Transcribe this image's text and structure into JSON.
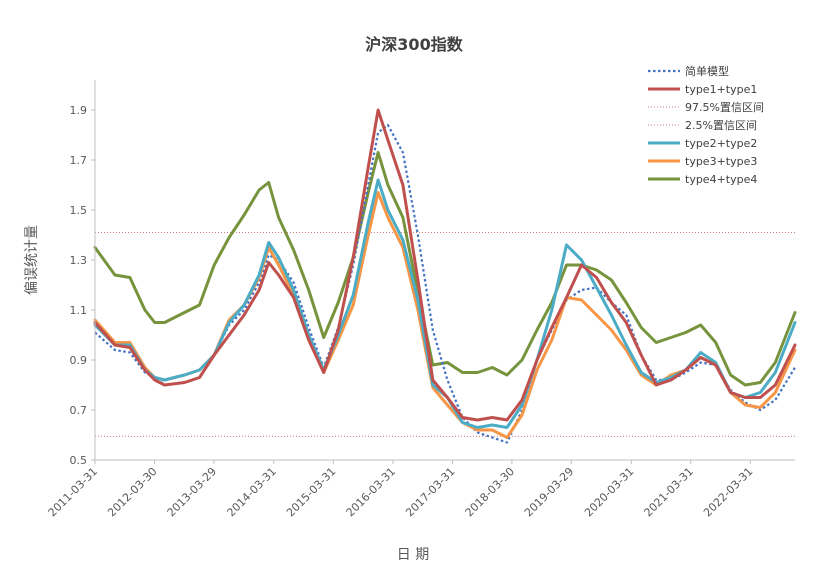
{
  "chart_data": {
    "type": "line",
    "title": "沪深300指数",
    "xlabel": "日 期",
    "ylabel": "偏误统计量",
    "ylim": [
      0.5,
      2.0
    ],
    "yticks": [
      "0.5",
      "0.7",
      "0.9",
      "1.1",
      "1.3",
      "1.5",
      "1.7",
      "1.9"
    ],
    "x_tick_labels": [
      "2011-03-31",
      "2012-03-30",
      "2013-03-29",
      "2014-03-31",
      "2015-03-31",
      "2016-03-31",
      "2017-03-31",
      "2018-03-30",
      "2019-03-29",
      "2020-03-31",
      "2021-03-31",
      "2022-03-31"
    ],
    "x_range": [
      "2011-03-31",
      "2022-12-30"
    ],
    "grid": false,
    "legend_position": "top-right",
    "reference_lines": [
      {
        "name": "97.5%置信区间",
        "value": 1.41,
        "color": "#C0504D",
        "style": "dotted"
      },
      {
        "name": "2.5%置信区间",
        "value": 0.595,
        "color": "#C0504D",
        "style": "dotted"
      }
    ],
    "series": [
      {
        "name": "简单模型",
        "color": "#4472C4",
        "style": "dotted",
        "points": [
          [
            "2011-03-31",
            1.01
          ],
          [
            "2011-07-31",
            0.94
          ],
          [
            "2011-10-31",
            0.93
          ],
          [
            "2012-01-31",
            0.85
          ],
          [
            "2012-03-31",
            0.83
          ],
          [
            "2012-05-31",
            0.8
          ],
          [
            "2012-09-30",
            0.81
          ],
          [
            "2012-12-31",
            0.83
          ],
          [
            "2013-03-31",
            0.92
          ],
          [
            "2013-06-30",
            1.04
          ],
          [
            "2013-09-30",
            1.1
          ],
          [
            "2013-12-31",
            1.21
          ],
          [
            "2014-02-28",
            1.32
          ],
          [
            "2014-04-30",
            1.3
          ],
          [
            "2014-07-31",
            1.21
          ],
          [
            "2014-10-31",
            1.03
          ],
          [
            "2015-01-31",
            0.87
          ],
          [
            "2015-04-30",
            1.03
          ],
          [
            "2015-07-31",
            1.28
          ],
          [
            "2015-10-31",
            1.6
          ],
          [
            "2015-12-31",
            1.81
          ],
          [
            "2016-02-29",
            1.84
          ],
          [
            "2016-05-31",
            1.73
          ],
          [
            "2016-08-31",
            1.4
          ],
          [
            "2016-11-30",
            1.02
          ],
          [
            "2017-02-28",
            0.82
          ],
          [
            "2017-05-31",
            0.67
          ],
          [
            "2017-08-31",
            0.61
          ],
          [
            "2017-11-30",
            0.59
          ],
          [
            "2018-02-28",
            0.57
          ],
          [
            "2018-05-31",
            0.7
          ],
          [
            "2018-08-31",
            0.9
          ],
          [
            "2018-11-30",
            1.02
          ],
          [
            "2019-02-28",
            1.14
          ],
          [
            "2019-05-31",
            1.18
          ],
          [
            "2019-08-31",
            1.19
          ],
          [
            "2019-11-30",
            1.13
          ],
          [
            "2020-02-29",
            1.08
          ],
          [
            "2020-05-31",
            0.92
          ],
          [
            "2020-08-31",
            0.82
          ],
          [
            "2020-11-30",
            0.82
          ],
          [
            "2021-02-28",
            0.85
          ],
          [
            "2021-05-31",
            0.89
          ],
          [
            "2021-08-31",
            0.88
          ],
          [
            "2021-11-30",
            0.78
          ],
          [
            "2022-02-28",
            0.73
          ],
          [
            "2022-05-31",
            0.7
          ],
          [
            "2022-08-31",
            0.74
          ],
          [
            "2022-12-30",
            0.87
          ]
        ]
      },
      {
        "name": "type1+type1",
        "color": "#C0504D",
        "style": "solid",
        "points": [
          [
            "2011-03-31",
            1.05
          ],
          [
            "2011-07-31",
            0.96
          ],
          [
            "2011-10-31",
            0.95
          ],
          [
            "2012-01-31",
            0.86
          ],
          [
            "2012-03-31",
            0.82
          ],
          [
            "2012-05-31",
            0.8
          ],
          [
            "2012-09-30",
            0.81
          ],
          [
            "2012-12-31",
            0.83
          ],
          [
            "2013-03-31",
            0.92
          ],
          [
            "2013-06-30",
            1.0
          ],
          [
            "2013-09-30",
            1.08
          ],
          [
            "2013-12-31",
            1.18
          ],
          [
            "2014-02-28",
            1.29
          ],
          [
            "2014-04-30",
            1.24
          ],
          [
            "2014-07-31",
            1.15
          ],
          [
            "2014-10-31",
            0.98
          ],
          [
            "2015-01-31",
            0.85
          ],
          [
            "2015-04-30",
            1.02
          ],
          [
            "2015-07-31",
            1.31
          ],
          [
            "2015-10-31",
            1.67
          ],
          [
            "2015-12-31",
            1.9
          ],
          [
            "2016-02-29",
            1.78
          ],
          [
            "2016-05-31",
            1.6
          ],
          [
            "2016-08-31",
            1.22
          ],
          [
            "2016-11-30",
            0.82
          ],
          [
            "2017-02-28",
            0.75
          ],
          [
            "2017-05-31",
            0.67
          ],
          [
            "2017-08-31",
            0.66
          ],
          [
            "2017-11-30",
            0.67
          ],
          [
            "2018-02-28",
            0.66
          ],
          [
            "2018-05-31",
            0.74
          ],
          [
            "2018-08-31",
            0.9
          ],
          [
            "2018-11-30",
            1.03
          ],
          [
            "2019-02-28",
            1.15
          ],
          [
            "2019-05-31",
            1.28
          ],
          [
            "2019-08-31",
            1.23
          ],
          [
            "2019-11-30",
            1.13
          ],
          [
            "2020-02-29",
            1.05
          ],
          [
            "2020-05-31",
            0.92
          ],
          [
            "2020-08-31",
            0.8
          ],
          [
            "2020-11-30",
            0.82
          ],
          [
            "2021-02-28",
            0.86
          ],
          [
            "2021-05-31",
            0.91
          ],
          [
            "2021-08-31",
            0.88
          ],
          [
            "2021-11-30",
            0.77
          ],
          [
            "2022-02-28",
            0.75
          ],
          [
            "2022-05-31",
            0.75
          ],
          [
            "2022-08-31",
            0.8
          ],
          [
            "2022-12-30",
            0.96
          ]
        ]
      },
      {
        "name": "type2+type2",
        "color": "#4BACC6",
        "style": "solid",
        "points": [
          [
            "2011-03-31",
            1.04
          ],
          [
            "2011-07-31",
            0.96
          ],
          [
            "2011-10-31",
            0.96
          ],
          [
            "2012-01-31",
            0.86
          ],
          [
            "2012-03-31",
            0.83
          ],
          [
            "2012-05-31",
            0.82
          ],
          [
            "2012-09-30",
            0.84
          ],
          [
            "2012-12-31",
            0.86
          ],
          [
            "2013-03-31",
            0.92
          ],
          [
            "2013-06-30",
            1.05
          ],
          [
            "2013-09-30",
            1.12
          ],
          [
            "2013-12-31",
            1.24
          ],
          [
            "2014-02-28",
            1.37
          ],
          [
            "2014-04-30",
            1.31
          ],
          [
            "2014-07-31",
            1.18
          ],
          [
            "2014-10-31",
            1.0
          ],
          [
            "2015-01-31",
            0.86
          ],
          [
            "2015-04-30",
            1.0
          ],
          [
            "2015-07-31",
            1.16
          ],
          [
            "2015-10-31",
            1.45
          ],
          [
            "2015-12-31",
            1.62
          ],
          [
            "2016-02-29",
            1.5
          ],
          [
            "2016-05-31",
            1.38
          ],
          [
            "2016-08-31",
            1.14
          ],
          [
            "2016-11-30",
            0.8
          ],
          [
            "2017-02-28",
            0.75
          ],
          [
            "2017-05-31",
            0.65
          ],
          [
            "2017-08-31",
            0.63
          ],
          [
            "2017-11-30",
            0.64
          ],
          [
            "2018-02-28",
            0.63
          ],
          [
            "2018-05-31",
            0.72
          ],
          [
            "2018-08-31",
            0.9
          ],
          [
            "2018-11-30",
            1.1
          ],
          [
            "2019-02-28",
            1.36
          ],
          [
            "2019-05-31",
            1.3
          ],
          [
            "2019-08-31",
            1.19
          ],
          [
            "2019-11-30",
            1.08
          ],
          [
            "2020-02-29",
            0.96
          ],
          [
            "2020-05-31",
            0.85
          ],
          [
            "2020-08-31",
            0.81
          ],
          [
            "2020-11-30",
            0.83
          ],
          [
            "2021-02-28",
            0.86
          ],
          [
            "2021-05-31",
            0.93
          ],
          [
            "2021-08-31",
            0.89
          ],
          [
            "2021-11-30",
            0.77
          ],
          [
            "2022-02-28",
            0.75
          ],
          [
            "2022-05-31",
            0.77
          ],
          [
            "2022-08-31",
            0.85
          ],
          [
            "2022-12-30",
            1.05
          ]
        ]
      },
      {
        "name": "type3+type3",
        "color": "#F79646",
        "style": "solid",
        "points": [
          [
            "2011-03-31",
            1.06
          ],
          [
            "2011-07-31",
            0.97
          ],
          [
            "2011-10-31",
            0.97
          ],
          [
            "2012-01-31",
            0.87
          ],
          [
            "2012-03-31",
            0.83
          ],
          [
            "2012-05-31",
            0.82
          ],
          [
            "2012-09-30",
            0.84
          ],
          [
            "2012-12-31",
            0.86
          ],
          [
            "2013-03-31",
            0.92
          ],
          [
            "2013-06-30",
            1.06
          ],
          [
            "2013-09-30",
            1.12
          ],
          [
            "2013-12-31",
            1.23
          ],
          [
            "2014-02-28",
            1.35
          ],
          [
            "2014-04-30",
            1.28
          ],
          [
            "2014-07-31",
            1.16
          ],
          [
            "2014-10-31",
            0.99
          ],
          [
            "2015-01-31",
            0.85
          ],
          [
            "2015-04-30",
            0.98
          ],
          [
            "2015-07-31",
            1.12
          ],
          [
            "2015-10-31",
            1.4
          ],
          [
            "2015-12-31",
            1.57
          ],
          [
            "2016-02-29",
            1.47
          ],
          [
            "2016-05-31",
            1.35
          ],
          [
            "2016-08-31",
            1.1
          ],
          [
            "2016-11-30",
            0.79
          ],
          [
            "2017-02-28",
            0.72
          ],
          [
            "2017-05-31",
            0.65
          ],
          [
            "2017-08-31",
            0.62
          ],
          [
            "2017-11-30",
            0.62
          ],
          [
            "2018-02-28",
            0.59
          ],
          [
            "2018-05-31",
            0.68
          ],
          [
            "2018-08-31",
            0.86
          ],
          [
            "2018-11-30",
            0.98
          ],
          [
            "2019-02-28",
            1.15
          ],
          [
            "2019-05-31",
            1.14
          ],
          [
            "2019-08-31",
            1.08
          ],
          [
            "2019-11-30",
            1.02
          ],
          [
            "2020-02-29",
            0.94
          ],
          [
            "2020-05-31",
            0.84
          ],
          [
            "2020-08-31",
            0.8
          ],
          [
            "2020-11-30",
            0.84
          ],
          [
            "2021-02-28",
            0.86
          ],
          [
            "2021-05-31",
            0.91
          ],
          [
            "2021-08-31",
            0.88
          ],
          [
            "2021-11-30",
            0.77
          ],
          [
            "2022-02-28",
            0.72
          ],
          [
            "2022-05-31",
            0.71
          ],
          [
            "2022-08-31",
            0.77
          ],
          [
            "2022-12-30",
            0.94
          ]
        ]
      },
      {
        "name": "type4+type4",
        "color": "#77933C",
        "style": "solid",
        "points": [
          [
            "2011-03-31",
            1.35
          ],
          [
            "2011-07-31",
            1.24
          ],
          [
            "2011-10-31",
            1.23
          ],
          [
            "2012-01-31",
            1.1
          ],
          [
            "2012-03-31",
            1.05
          ],
          [
            "2012-05-31",
            1.05
          ],
          [
            "2012-09-30",
            1.09
          ],
          [
            "2012-12-31",
            1.12
          ],
          [
            "2013-03-31",
            1.28
          ],
          [
            "2013-06-30",
            1.39
          ],
          [
            "2013-09-30",
            1.48
          ],
          [
            "2013-12-31",
            1.58
          ],
          [
            "2014-02-28",
            1.61
          ],
          [
            "2014-04-30",
            1.47
          ],
          [
            "2014-07-31",
            1.34
          ],
          [
            "2014-10-31",
            1.18
          ],
          [
            "2015-01-31",
            0.99
          ],
          [
            "2015-04-30",
            1.13
          ],
          [
            "2015-07-31",
            1.31
          ],
          [
            "2015-10-31",
            1.57
          ],
          [
            "2015-12-31",
            1.73
          ],
          [
            "2016-02-29",
            1.6
          ],
          [
            "2016-05-31",
            1.47
          ],
          [
            "2016-08-31",
            1.17
          ],
          [
            "2016-11-30",
            0.88
          ],
          [
            "2017-02-28",
            0.89
          ],
          [
            "2017-05-31",
            0.85
          ],
          [
            "2017-08-31",
            0.85
          ],
          [
            "2017-11-30",
            0.87
          ],
          [
            "2018-02-28",
            0.84
          ],
          [
            "2018-05-31",
            0.9
          ],
          [
            "2018-08-31",
            1.02
          ],
          [
            "2018-11-30",
            1.13
          ],
          [
            "2019-02-28",
            1.28
          ],
          [
            "2019-05-31",
            1.28
          ],
          [
            "2019-08-31",
            1.26
          ],
          [
            "2019-11-30",
            1.22
          ],
          [
            "2020-02-29",
            1.13
          ],
          [
            "2020-05-31",
            1.03
          ],
          [
            "2020-08-31",
            0.97
          ],
          [
            "2020-11-30",
            0.99
          ],
          [
            "2021-02-28",
            1.01
          ],
          [
            "2021-05-31",
            1.04
          ],
          [
            "2021-08-31",
            0.97
          ],
          [
            "2021-11-30",
            0.84
          ],
          [
            "2022-02-28",
            0.8
          ],
          [
            "2022-05-31",
            0.81
          ],
          [
            "2022-08-31",
            0.89
          ],
          [
            "2022-12-30",
            1.09
          ]
        ]
      }
    ],
    "legend_items": [
      {
        "name": "简单模型",
        "color": "#4472C4",
        "style": "dotted"
      },
      {
        "name": "type1+type1",
        "color": "#C0504D",
        "style": "solid"
      },
      {
        "name": "97.5%置信区间",
        "color": "#C0504D",
        "style": "thin-dotted"
      },
      {
        "name": "2.5%置信区间",
        "color": "#C0504D",
        "style": "thin-dotted"
      },
      {
        "name": "type2+type2",
        "color": "#4BACC6",
        "style": "solid"
      },
      {
        "name": "type3+type3",
        "color": "#F79646",
        "style": "solid"
      },
      {
        "name": "type4+type4",
        "color": "#77933C",
        "style": "solid"
      }
    ]
  }
}
